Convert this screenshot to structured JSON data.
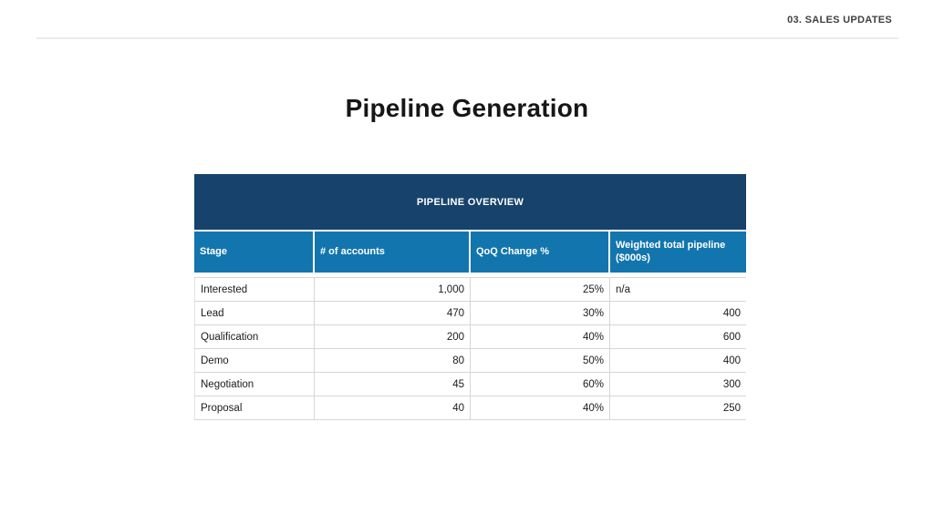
{
  "page": {
    "running_header": "03. SALES UPDATES",
    "title": "Pipeline Generation"
  },
  "colors": {
    "band_navy": "#16426B",
    "header_blue": "#1375AD",
    "row_border": "#D6D6D6",
    "header_text": "#FFFFFF",
    "body_text": "#1B1B1B"
  },
  "table": {
    "title": "PIPELINE OVERVIEW",
    "columns": [
      "Stage",
      "# of accounts",
      "QoQ Change %",
      "Weighted total pipeline ($000s)"
    ],
    "rows": [
      {
        "stage": "Interested",
        "accounts": "1,000",
        "qoq": "25%",
        "weighted": "n/a"
      },
      {
        "stage": "Lead",
        "accounts": "470",
        "qoq": "30%",
        "weighted": "400"
      },
      {
        "stage": "Qualification",
        "accounts": "200",
        "qoq": "40%",
        "weighted": "600"
      },
      {
        "stage": "Demo",
        "accounts": "80",
        "qoq": "50%",
        "weighted": "400"
      },
      {
        "stage": "Negotiation",
        "accounts": "45",
        "qoq": "60%",
        "weighted": "300"
      },
      {
        "stage": "Proposal",
        "accounts": "40",
        "qoq": "40%",
        "weighted": "250"
      }
    ]
  }
}
